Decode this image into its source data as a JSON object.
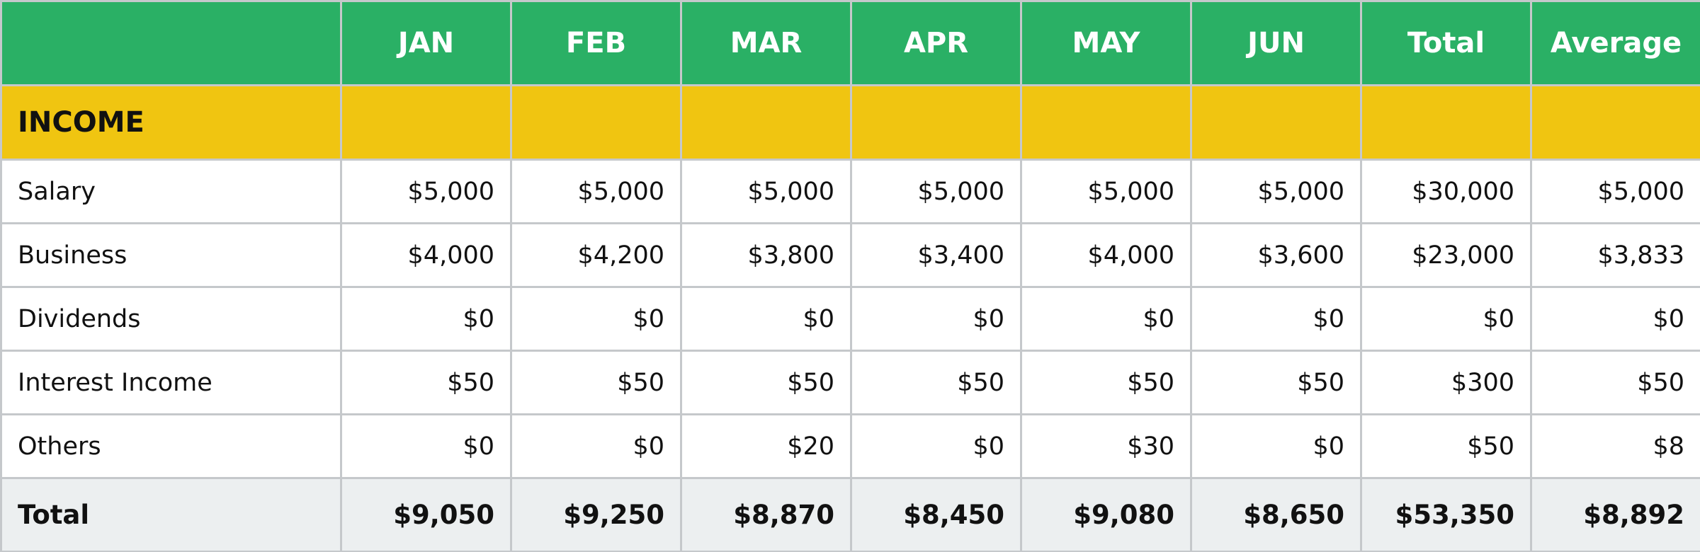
{
  "header": {
    "corner": "",
    "columns": [
      "JAN",
      "FEB",
      "MAR",
      "APR",
      "MAY",
      "JUN",
      "Total",
      "Average"
    ]
  },
  "section": {
    "title": "INCOME"
  },
  "rows": [
    {
      "label": "Salary",
      "values": [
        "$5,000",
        "$5,000",
        "$5,000",
        "$5,000",
        "$5,000",
        "$5,000",
        "$30,000",
        "$5,000"
      ]
    },
    {
      "label": "Business",
      "values": [
        "$4,000",
        "$4,200",
        "$3,800",
        "$3,400",
        "$4,000",
        "$3,600",
        "$23,000",
        "$3,833"
      ]
    },
    {
      "label": "Dividends",
      "values": [
        "$0",
        "$0",
        "$0",
        "$0",
        "$0",
        "$0",
        "$0",
        "$0"
      ]
    },
    {
      "label": "Interest Income",
      "values": [
        "$50",
        "$50",
        "$50",
        "$50",
        "$50",
        "$50",
        "$300",
        "$50"
      ]
    },
    {
      "label": "Others",
      "values": [
        "$0",
        "$0",
        "$20",
        "$0",
        "$30",
        "$0",
        "$50",
        "$8"
      ]
    }
  ],
  "total": {
    "label": "Total",
    "values": [
      "$9,050",
      "$9,250",
      "$8,870",
      "$8,450",
      "$9,080",
      "$8,650",
      "$53,350",
      "$8,892"
    ]
  },
  "colors": {
    "header_bg": "#2ab065",
    "section_bg": "#f0c511",
    "total_bg": "#eceff0",
    "grid": "#c5c8cb"
  }
}
